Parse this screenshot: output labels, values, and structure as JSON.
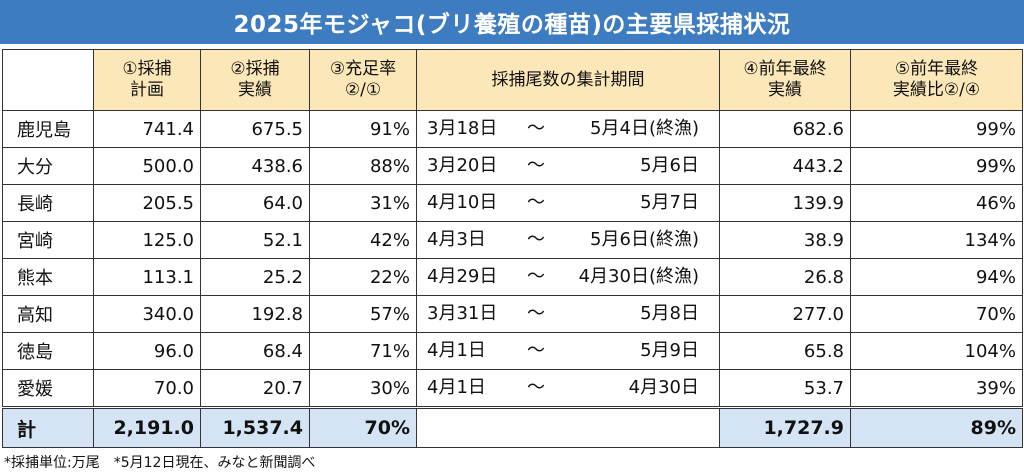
{
  "title": "2025年モジャコ(ブリ養殖の種苗)の主要県採捕状況",
  "headers": {
    "plan": [
      "①採捕",
      "計画"
    ],
    "catch": [
      "②採捕",
      "実績"
    ],
    "rate": [
      "③充足率",
      "②/①"
    ],
    "period": "採捕尾数の集計期間",
    "prev": [
      "④前年最終",
      "実績"
    ],
    "ratio": [
      "⑤前年最終",
      "実績比②/④"
    ]
  },
  "rows": [
    {
      "pref": "鹿児島",
      "plan": "741.4",
      "catch": "675.5",
      "rate": "91%",
      "start": "3月18日",
      "tilde": "～",
      "end": "5月4日(終漁)",
      "prev": "682.6",
      "ratio": "99%"
    },
    {
      "pref": "大分",
      "plan": "500.0",
      "catch": "438.6",
      "rate": "88%",
      "start": "3月20日",
      "tilde": "～",
      "end": "5月6日",
      "prev": "443.2",
      "ratio": "99%"
    },
    {
      "pref": "長崎",
      "plan": "205.5",
      "catch": "64.0",
      "rate": "31%",
      "start": "4月10日",
      "tilde": "～",
      "end": "5月7日",
      "prev": "139.9",
      "ratio": "46%"
    },
    {
      "pref": "宮崎",
      "plan": "125.0",
      "catch": "52.1",
      "rate": "42%",
      "start": "4月3日",
      "tilde": "～",
      "end": "5月6日(終漁)",
      "prev": "38.9",
      "ratio": "134%"
    },
    {
      "pref": "熊本",
      "plan": "113.1",
      "catch": "25.2",
      "rate": "22%",
      "start": "4月29日",
      "tilde": "～",
      "end": "4月30日(終漁)",
      "prev": "26.8",
      "ratio": "94%"
    },
    {
      "pref": "高知",
      "plan": "340.0",
      "catch": "192.8",
      "rate": "57%",
      "start": "3月31日",
      "tilde": "～",
      "end": "5月8日",
      "prev": "277.0",
      "ratio": "70%"
    },
    {
      "pref": "徳島",
      "plan": "96.0",
      "catch": "68.4",
      "rate": "71%",
      "start": "4月1日",
      "tilde": "～",
      "end": "5月9日",
      "prev": "65.8",
      "ratio": "104%"
    },
    {
      "pref": "愛媛",
      "plan": "70.0",
      "catch": "20.7",
      "rate": "30%",
      "start": "4月1日",
      "tilde": "～",
      "end": "4月30日",
      "prev": "53.7",
      "ratio": "39%"
    }
  ],
  "total": {
    "label": "計",
    "plan": "2,191.0",
    "catch": "1,537.4",
    "rate": "70%",
    "prev": "1,727.9",
    "ratio": "89%"
  },
  "footnote": "*採捕単位:万尾　*5月12日現在、みなと新聞調べ",
  "colors": {
    "title_bg": "#3e7cc2",
    "header_bg": "#fbe7b8",
    "total_bg": "#d5e4f4"
  }
}
